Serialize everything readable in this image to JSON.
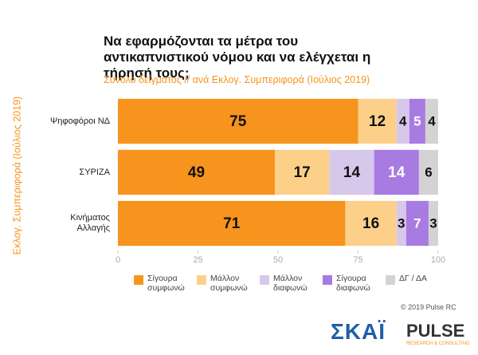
{
  "chart_data": {
    "type": "stacked-bar-horizontal",
    "title": "Να εφαρμόζονται τα μέτρα του αντικαπνιστικού νόμου και να ελέγχεται η τήρησή τους;",
    "subtitle": "Σύνολο δείγματος // ανά Εκλογ. Συμπεριφορά (Ιούλιος 2019)",
    "y_label": "Εκλογ. Συμπεριφορά (Ιούλιος 2019)",
    "categories": [
      "Ψηφοφόροι ΝΔ",
      "ΣΥΡΙΖΑ",
      "Κινήματος Αλλαγής"
    ],
    "series": [
      {
        "name": "Σίγουρα συμφωνώ",
        "color": "#f7941d",
        "label_color": "#111111",
        "values": [
          75,
          49,
          71
        ]
      },
      {
        "name": "Μάλλον συμφωνώ",
        "color": "#fdd08a",
        "label_color": "#111111",
        "values": [
          12,
          17,
          16
        ]
      },
      {
        "name": "Μάλλον διαφωνώ",
        "color": "#d6c8ea",
        "label_color": "#111111",
        "values": [
          4,
          14,
          3
        ]
      },
      {
        "name": "Σίγουρα διαφωνώ",
        "color": "#a87be2",
        "label_color": "#ffffff",
        "values": [
          5,
          14,
          7
        ]
      },
      {
        "name": "ΔΓ / ΔΑ",
        "color": "#d3d3d3",
        "label_color": "#111111",
        "values": [
          4,
          6,
          3
        ]
      }
    ],
    "xlim": [
      0,
      100
    ],
    "xticks": [
      0,
      25,
      50,
      75,
      100
    ],
    "copyright": "© 2019 Pulse RC",
    "logos": {
      "skai": "ΣΚΑΪ",
      "pulse": "PULSE",
      "pulse_sub": "RESEARCH & CONSULTING"
    }
  }
}
